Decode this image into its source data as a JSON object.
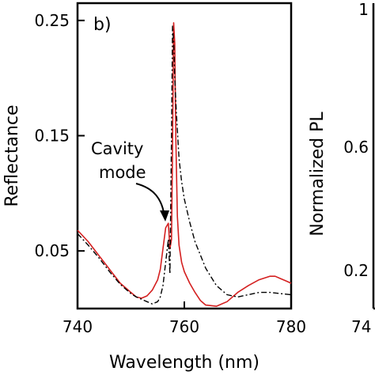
{
  "chart_data": [
    {
      "type": "line",
      "panel_label": "b)",
      "xlabel": "Wavelength (nm)",
      "ylabel": "Reflectance",
      "xlim": [
        740,
        780
      ],
      "ylim": [
        0.0,
        0.265
      ],
      "xticks": [
        740,
        760,
        780
      ],
      "xtick_labels": [
        "740",
        "760",
        "780"
      ],
      "yticks": [
        0.05,
        0.15,
        0.25
      ],
      "ytick_labels": [
        "0.05",
        "0.15",
        "0.25"
      ],
      "annotation": {
        "lines": [
          "Cavity",
          "mode"
        ],
        "points_to": [
          757.0,
          0.07
        ]
      },
      "series": [
        {
          "style": "solid",
          "color": "#d42020",
          "x": [
            740,
            742,
            744,
            746,
            748,
            750,
            751,
            752,
            753,
            754,
            755,
            755.5,
            756,
            756.5,
            757,
            757.3,
            757.6,
            757.8,
            758.0,
            758.2,
            758.4,
            758.7,
            759,
            759.5,
            760,
            761,
            762,
            763,
            764,
            766,
            768,
            770,
            772,
            774,
            776,
            777,
            778,
            779,
            780
          ],
          "y": [
            0.068,
            0.058,
            0.046,
            0.034,
            0.022,
            0.014,
            0.01,
            0.009,
            0.011,
            0.016,
            0.025,
            0.034,
            0.052,
            0.07,
            0.074,
            0.052,
            0.06,
            0.14,
            0.248,
            0.23,
            0.15,
            0.08,
            0.055,
            0.04,
            0.032,
            0.022,
            0.014,
            0.007,
            0.003,
            0.002,
            0.006,
            0.014,
            0.02,
            0.025,
            0.028,
            0.028,
            0.026,
            0.024,
            0.022
          ]
        },
        {
          "style": "dash-dot",
          "color": "#000000",
          "x": [
            740,
            742,
            744,
            746,
            748,
            750,
            751,
            752,
            753,
            754,
            755,
            755.5,
            756,
            756.5,
            757,
            757.3,
            757.6,
            757.8,
            758.0,
            758.2,
            758.5,
            759,
            759.5,
            760,
            761,
            762,
            764,
            766,
            768,
            770,
            772,
            774,
            776,
            778,
            780
          ],
          "y": [
            0.065,
            0.055,
            0.044,
            0.032,
            0.021,
            0.013,
            0.01,
            0.008,
            0.006,
            0.004,
            0.006,
            0.01,
            0.02,
            0.04,
            0.06,
            0.03,
            0.15,
            0.245,
            0.232,
            0.2,
            0.17,
            0.13,
            0.11,
            0.095,
            0.075,
            0.058,
            0.035,
            0.02,
            0.012,
            0.01,
            0.012,
            0.014,
            0.014,
            0.013,
            0.012
          ]
        }
      ]
    },
    {
      "type": "line",
      "ylabel": "Normalized PL",
      "yticks": [
        0.2,
        0.6,
        1
      ],
      "ytick_labels": [
        "0.2",
        "0.6",
        "1"
      ],
      "xtick_partial": "74"
    }
  ]
}
